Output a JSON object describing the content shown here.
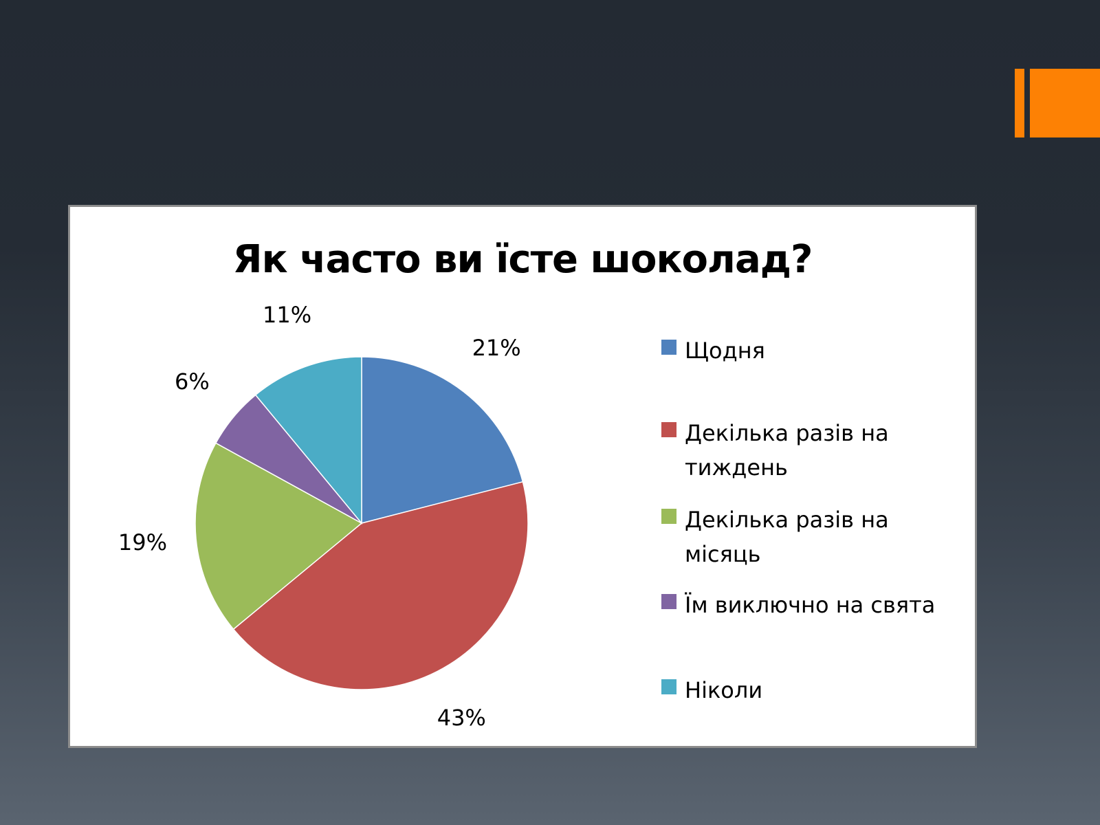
{
  "chart_data": {
    "type": "pie",
    "title": "Як часто ви їсте шоколад?",
    "categories": [
      "Щодня",
      "Декілька разів на тиждень",
      "Декілька разів на місяць",
      "Їм виключно на свята",
      "Ніколи"
    ],
    "values": [
      21,
      43,
      19,
      6,
      11
    ],
    "data_labels": [
      "21%",
      "43%",
      "19%",
      "6%",
      "11%"
    ],
    "colors": [
      "#4f81bd",
      "#c0504d",
      "#9bbb59",
      "#8064a2",
      "#4bacc6"
    ],
    "legend": "right"
  },
  "accent_color": "#fd8104"
}
